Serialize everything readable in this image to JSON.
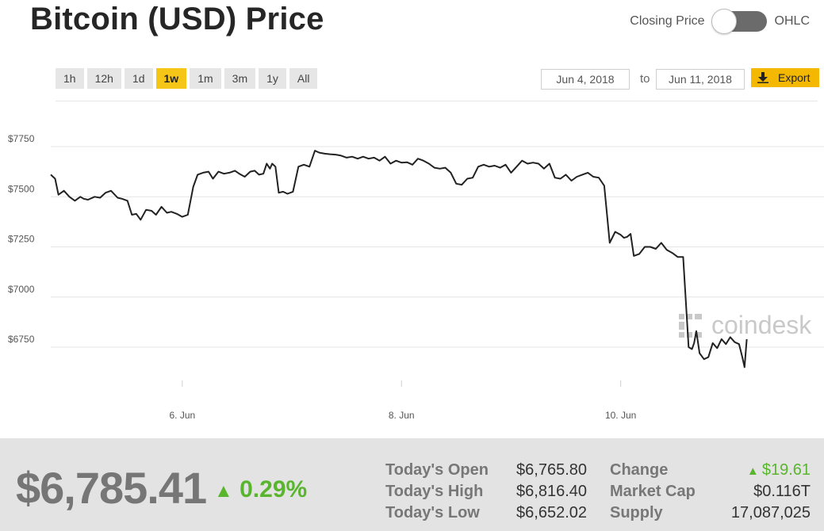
{
  "title": "Bitcoin (USD) Price",
  "toggle": {
    "left_label": "Closing Price",
    "right_label": "OHLC"
  },
  "ranges": [
    "1h",
    "12h",
    "1d",
    "1w",
    "1m",
    "3m",
    "1y",
    "All"
  ],
  "active_range": "1w",
  "date_from": "Jun 4, 2018",
  "date_to_label": "to",
  "date_to": "Jun 11, 2018",
  "export_label": "Export",
  "watermark": "coindesk",
  "colors": {
    "accent": "#f5c518",
    "export": "#f5b800",
    "positive": "#5ab52e",
    "line": "#222222"
  },
  "chart_data": {
    "type": "line",
    "title": "",
    "xlabel": "",
    "ylabel": "",
    "ylim": [
      6600,
      7850
    ],
    "yticks": [
      6750,
      7000,
      7250,
      7500,
      7750
    ],
    "ytick_labels": [
      "$6750",
      "$7000",
      "$7250",
      "$7500",
      "$7750"
    ],
    "xlim": [
      4.8,
      11.15
    ],
    "xticks": [
      6,
      8,
      10
    ],
    "xtick_labels": [
      "6. Jun",
      "8. Jun",
      "10. Jun"
    ],
    "grid": true,
    "legend": "none",
    "series": [
      {
        "x": [
          4.8,
          4.84,
          4.87,
          4.92,
          4.97,
          5.02,
          5.07,
          5.1,
          5.14,
          5.2,
          5.25,
          5.3,
          5.35,
          5.41,
          5.45,
          5.5,
          5.54,
          5.58,
          5.62,
          5.67,
          5.72,
          5.76,
          5.81,
          5.86,
          5.9,
          5.95,
          6.0,
          6.05,
          6.1,
          6.14,
          6.19,
          6.24,
          6.28,
          6.33,
          6.38,
          6.43,
          6.48,
          6.52,
          6.57,
          6.62,
          6.66,
          6.7,
          6.74,
          6.77,
          6.8,
          6.82,
          6.85,
          6.88,
          6.92,
          6.96,
          7.01,
          7.06,
          7.11,
          7.16,
          7.21,
          7.25,
          7.3,
          7.35,
          7.4,
          7.45,
          7.5,
          7.55,
          7.6,
          7.65,
          7.7,
          7.75,
          7.8,
          7.85,
          7.9,
          7.95,
          8.0,
          8.05,
          8.1,
          8.15,
          8.2,
          8.25,
          8.3,
          8.35,
          8.4,
          8.45,
          8.5,
          8.55,
          8.6,
          8.65,
          8.7,
          8.75,
          8.8,
          8.85,
          8.9,
          8.95,
          9.0,
          9.05,
          9.1,
          9.15,
          9.2,
          9.25,
          9.3,
          9.35,
          9.4,
          9.45,
          9.5,
          9.55,
          9.6,
          9.65,
          9.7,
          9.75,
          9.8,
          9.85,
          9.9,
          9.95,
          10.0,
          10.03,
          10.06,
          10.09,
          10.12,
          10.17,
          10.22,
          10.27,
          10.32,
          10.37,
          10.42,
          10.47,
          10.52,
          10.57,
          10.62,
          10.65,
          10.67,
          10.69,
          10.72,
          10.76,
          10.8,
          10.84,
          10.88,
          10.92,
          10.96,
          11.0,
          11.04,
          11.08,
          11.11,
          11.13,
          11.15
        ],
        "y": [
          7610,
          7590,
          7510,
          7530,
          7500,
          7480,
          7500,
          7490,
          7485,
          7500,
          7495,
          7520,
          7530,
          7495,
          7490,
          7480,
          7410,
          7415,
          7385,
          7435,
          7430,
          7410,
          7450,
          7420,
          7425,
          7415,
          7400,
          7410,
          7550,
          7610,
          7620,
          7625,
          7590,
          7625,
          7615,
          7620,
          7630,
          7615,
          7600,
          7625,
          7630,
          7610,
          7615,
          7665,
          7640,
          7665,
          7650,
          7520,
          7525,
          7515,
          7525,
          7650,
          7660,
          7650,
          7730,
          7720,
          7715,
          7712,
          7710,
          7705,
          7695,
          7700,
          7690,
          7700,
          7690,
          7695,
          7680,
          7700,
          7665,
          7680,
          7670,
          7672,
          7660,
          7690,
          7680,
          7665,
          7645,
          7640,
          7645,
          7620,
          7565,
          7560,
          7590,
          7595,
          7650,
          7660,
          7650,
          7655,
          7645,
          7660,
          7620,
          7650,
          7680,
          7665,
          7670,
          7665,
          7640,
          7665,
          7595,
          7590,
          7610,
          7580,
          7600,
          7610,
          7620,
          7600,
          7595,
          7555,
          7270,
          7325,
          7310,
          7295,
          7300,
          7315,
          7205,
          7215,
          7250,
          7250,
          7240,
          7270,
          7235,
          7220,
          7200,
          7200,
          6750,
          6740,
          6770,
          6830,
          6720,
          6690,
          6700,
          6770,
          6745,
          6790,
          6765,
          6800,
          6775,
          6765,
          6700,
          6650,
          6790
        ]
      }
    ]
  },
  "stats": {
    "price": "$6,785.41",
    "change_pct": "0.29%",
    "open_label": "Today's Open",
    "open_value": "$6,765.80",
    "high_label": "Today's High",
    "high_value": "$6,816.40",
    "low_label": "Today's Low",
    "low_value": "$6,652.02",
    "change_label": "Change",
    "change_value": "$19.61",
    "mcap_label": "Market Cap",
    "mcap_value": "$0.116T",
    "supply_label": "Supply",
    "supply_value": "17,087,025"
  }
}
